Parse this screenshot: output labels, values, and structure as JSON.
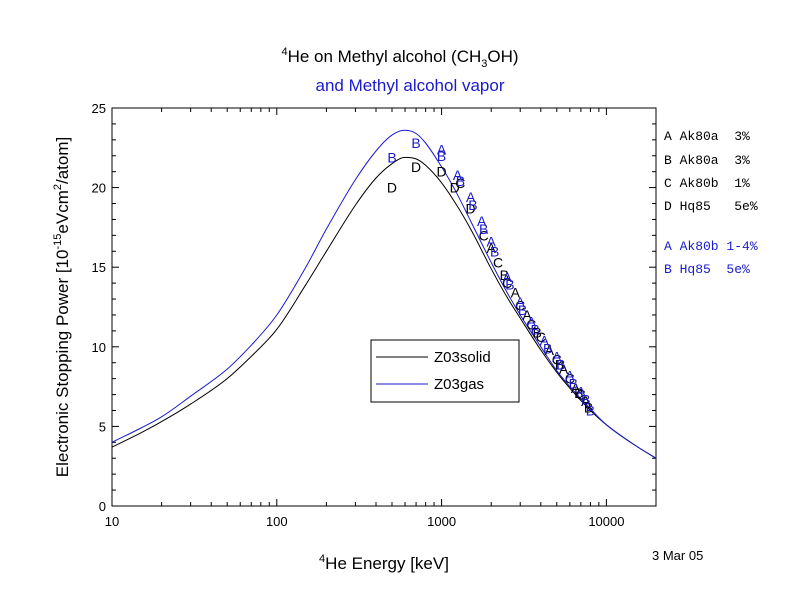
{
  "title": {
    "line1_sup": "4",
    "line1_pre": "He on Methyl alcohol (CH",
    "line1_sub": "3",
    "line1_post": "OH)",
    "line2": "and Methyl alcohol vapor",
    "line2_color": "#1a1acc"
  },
  "date_stamp": "3 Mar 05",
  "colors": {
    "solid": "#000000",
    "gas": "#1a1acc"
  },
  "chart_data": {
    "type": "line",
    "xscale": "log",
    "xlim": [
      10,
      20000
    ],
    "ylim": [
      0,
      25
    ],
    "xticks": [
      10,
      100,
      1000,
      10000
    ],
    "xtick_labels": [
      "10",
      "100",
      "1000",
      "10000"
    ],
    "yticks": [
      0,
      5,
      10,
      15,
      20,
      25
    ],
    "ytick_labels": [
      "0",
      "5",
      "10",
      "15",
      "20",
      "25"
    ],
    "xlabel": {
      "sup": "4",
      "text": "He Energy [keV]"
    },
    "ylabel": {
      "pre": "Electronic Stopping Power [10",
      "sup1": "-15",
      "mid": "eVcm",
      "sup2": "2",
      "post": "/atom]"
    },
    "legend": {
      "placement": "center",
      "entries": [
        "Z03solid",
        "Z03gas"
      ]
    },
    "series": [
      {
        "name": "Z03solid",
        "color": "#000000",
        "x": [
          10,
          15,
          20,
          30,
          50,
          70,
          100,
          150,
          200,
          300,
          400,
          500,
          600,
          700,
          800,
          1000,
          1200,
          1500,
          2000,
          2500,
          3000,
          4000,
          5000,
          6000,
          8000,
          10000,
          15000,
          20000
        ],
        "y": [
          3.7,
          4.6,
          5.3,
          6.4,
          8.0,
          9.4,
          11.1,
          13.9,
          16.0,
          18.9,
          20.6,
          21.5,
          21.9,
          21.8,
          21.4,
          20.3,
          19.1,
          17.4,
          14.9,
          13.1,
          11.8,
          9.8,
          8.4,
          7.4,
          6.0,
          5.1,
          3.8,
          3.0
        ]
      },
      {
        "name": "Z03gas",
        "color": "#1a1acc",
        "x": [
          10,
          15,
          20,
          30,
          50,
          70,
          100,
          150,
          200,
          300,
          400,
          500,
          600,
          700,
          800,
          1000,
          1200,
          1500,
          2000,
          2500,
          3000,
          4000,
          5000,
          6000,
          8000,
          10000,
          15000,
          20000
        ],
        "y": [
          4.0,
          4.9,
          5.6,
          6.9,
          8.6,
          10.1,
          12.0,
          15.0,
          17.4,
          20.5,
          22.3,
          23.3,
          23.6,
          23.4,
          22.8,
          21.3,
          19.9,
          17.9,
          15.3,
          13.4,
          12.0,
          10.0,
          8.5,
          7.5,
          6.1,
          5.1,
          3.8,
          3.0
        ]
      }
    ],
    "points": [
      {
        "l": "D",
        "c": "black",
        "x": 500,
        "y": 20.0
      },
      {
        "l": "D",
        "c": "black",
        "x": 700,
        "y": 21.3
      },
      {
        "l": "D",
        "c": "black",
        "x": 1000,
        "y": 21.0
      },
      {
        "l": "D",
        "c": "black",
        "x": 1200,
        "y": 20.0
      },
      {
        "l": "D",
        "c": "black",
        "x": 1500,
        "y": 18.7
      },
      {
        "l": "C",
        "c": "black",
        "x": 1300,
        "y": 20.3
      },
      {
        "l": "C",
        "c": "black",
        "x": 1800,
        "y": 17.0
      },
      {
        "l": "C",
        "c": "black",
        "x": 2200,
        "y": 15.3
      },
      {
        "l": "C",
        "c": "black",
        "x": 2500,
        "y": 14.0
      },
      {
        "l": "C",
        "c": "black",
        "x": 3000,
        "y": 12.6
      },
      {
        "l": "C",
        "c": "black",
        "x": 3500,
        "y": 11.4
      },
      {
        "l": "C",
        "c": "black",
        "x": 4000,
        "y": 10.6
      },
      {
        "l": "C",
        "c": "black",
        "x": 5000,
        "y": 9.2
      },
      {
        "l": "C",
        "c": "black",
        "x": 6000,
        "y": 8.0
      },
      {
        "l": "C",
        "c": "black",
        "x": 7000,
        "y": 7.0
      },
      {
        "l": "A",
        "c": "black",
        "x": 2000,
        "y": 16.2
      },
      {
        "l": "A",
        "c": "black",
        "x": 2800,
        "y": 13.4
      },
      {
        "l": "A",
        "c": "black",
        "x": 3300,
        "y": 12.0
      },
      {
        "l": "A",
        "c": "black",
        "x": 4500,
        "y": 9.8
      },
      {
        "l": "A",
        "c": "black",
        "x": 5500,
        "y": 8.6
      },
      {
        "l": "A",
        "c": "black",
        "x": 6500,
        "y": 7.4
      },
      {
        "l": "A",
        "c": "black",
        "x": 7500,
        "y": 6.6
      },
      {
        "l": "B",
        "c": "black",
        "x": 2400,
        "y": 14.5
      },
      {
        "l": "B",
        "c": "black",
        "x": 3800,
        "y": 10.9
      },
      {
        "l": "B",
        "c": "black",
        "x": 5200,
        "y": 8.9
      },
      {
        "l": "B",
        "c": "black",
        "x": 6800,
        "y": 7.1
      },
      {
        "l": "B",
        "c": "black",
        "x": 7800,
        "y": 6.2
      },
      {
        "l": "B",
        "c": "blue",
        "x": 500,
        "y": 21.9
      },
      {
        "l": "B",
        "c": "blue",
        "x": 700,
        "y": 22.8
      },
      {
        "l": "A",
        "c": "blue",
        "x": 1000,
        "y": 22.4
      },
      {
        "l": "B",
        "c": "blue",
        "x": 1000,
        "y": 22.0
      },
      {
        "l": "A",
        "c": "blue",
        "x": 1250,
        "y": 20.8
      },
      {
        "l": "B",
        "c": "blue",
        "x": 1300,
        "y": 20.4
      },
      {
        "l": "A",
        "c": "blue",
        "x": 1500,
        "y": 19.4
      },
      {
        "l": "B",
        "c": "blue",
        "x": 1550,
        "y": 18.9
      },
      {
        "l": "A",
        "c": "blue",
        "x": 1750,
        "y": 17.9
      },
      {
        "l": "B",
        "c": "blue",
        "x": 1800,
        "y": 17.4
      },
      {
        "l": "A",
        "c": "blue",
        "x": 2000,
        "y": 16.6
      },
      {
        "l": "B",
        "c": "blue",
        "x": 2100,
        "y": 16.0
      },
      {
        "l": "A",
        "c": "blue",
        "x": 2500,
        "y": 14.4
      },
      {
        "l": "B",
        "c": "blue",
        "x": 2600,
        "y": 13.9
      },
      {
        "l": "A",
        "c": "blue",
        "x": 3000,
        "y": 12.8
      },
      {
        "l": "B",
        "c": "blue",
        "x": 3100,
        "y": 12.3
      },
      {
        "l": "A",
        "c": "blue",
        "x": 3500,
        "y": 11.6
      },
      {
        "l": "B",
        "c": "blue",
        "x": 3700,
        "y": 11.1
      },
      {
        "l": "A",
        "c": "blue",
        "x": 4200,
        "y": 10.4
      },
      {
        "l": "B",
        "c": "blue",
        "x": 4400,
        "y": 9.9
      },
      {
        "l": "A",
        "c": "blue",
        "x": 5000,
        "y": 9.4
      },
      {
        "l": "B",
        "c": "blue",
        "x": 5300,
        "y": 8.9
      },
      {
        "l": "A",
        "c": "blue",
        "x": 6000,
        "y": 8.2
      },
      {
        "l": "B",
        "c": "blue",
        "x": 6300,
        "y": 7.7
      },
      {
        "l": "A",
        "c": "blue",
        "x": 7000,
        "y": 7.2
      },
      {
        "l": "B",
        "c": "blue",
        "x": 7500,
        "y": 6.7
      },
      {
        "l": "B",
        "c": "blue",
        "x": 8000,
        "y": 6.0
      }
    ],
    "datasets": [
      {
        "text": "A Ak80a  3%",
        "color": "#000000"
      },
      {
        "text": "B Ak80a  3%",
        "color": "#000000"
      },
      {
        "text": "C Ak80b  1%",
        "color": "#000000"
      },
      {
        "text": "D Hq85   5e%",
        "color": "#000000"
      },
      {
        "text": "A Ak80b 1-4%",
        "color": "#1a1acc"
      },
      {
        "text": "B Hq85  5e%",
        "color": "#1a1acc"
      }
    ]
  }
}
